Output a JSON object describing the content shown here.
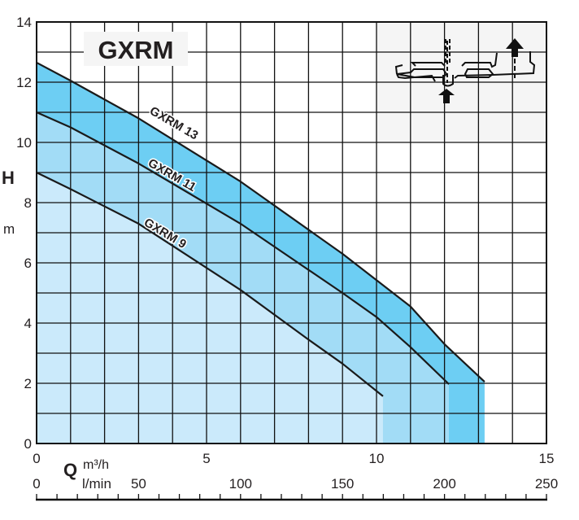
{
  "chart_data": {
    "type": "line",
    "title": "GXRM",
    "ylabel": "H",
    "yunit": "m",
    "xlabel": "Q",
    "xunit_primary": "m3/h",
    "xunit_secondary": "l/min",
    "xlim": [
      0,
      15
    ],
    "ylim": [
      0,
      14
    ],
    "xlim_secondary": [
      0,
      250
    ],
    "grid": true,
    "x_ticks": [
      "0",
      "5",
      "10",
      "15"
    ],
    "x_ticks_values": [
      0,
      5,
      10,
      15
    ],
    "x2_ticks": [
      "0",
      "50",
      "100",
      "150",
      "200",
      "250"
    ],
    "x2_ticks_values": [
      0,
      50,
      100,
      150,
      200,
      250
    ],
    "y_ticks": [
      "0",
      "2",
      "4",
      "6",
      "8",
      "10",
      "12",
      "14"
    ],
    "y_ticks_values": [
      0,
      2,
      4,
      6,
      8,
      10,
      12,
      14
    ],
    "series": [
      {
        "name": "GXRM 13",
        "color": "#6dcef3",
        "x": [
          0,
          1,
          3,
          6,
          9,
          11,
          12,
          13.18
        ],
        "y": [
          12.65,
          12.05,
          10.8,
          8.7,
          6.3,
          4.55,
          3.3,
          2.05
        ]
      },
      {
        "name": "GXRM 11",
        "color": "#a2dcf6",
        "x": [
          0,
          1,
          3,
          6,
          9,
          10,
          11,
          12.13
        ],
        "y": [
          11.0,
          10.5,
          9.3,
          7.3,
          5.0,
          4.2,
          3.2,
          1.97
        ]
      },
      {
        "name": "GXRM 9",
        "color": "#cbeafb",
        "x": [
          0,
          1,
          3,
          6,
          8,
          9,
          10.19
        ],
        "y": [
          9.0,
          8.45,
          7.3,
          5.1,
          3.45,
          2.65,
          1.57
        ]
      }
    ]
  }
}
